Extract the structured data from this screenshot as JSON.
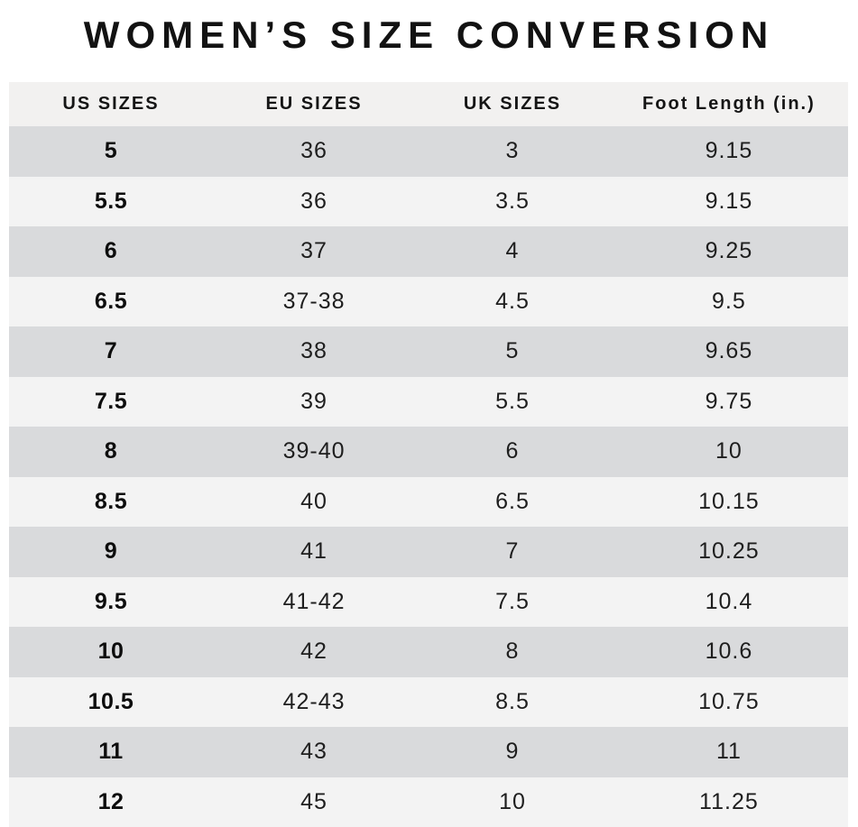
{
  "chart_data": {
    "type": "table",
    "title": "WOMEN’S SIZE CONVERSION",
    "columns": [
      "US SIZES",
      "EU SIZES",
      "UK SIZES",
      "Foot Length (in.)"
    ],
    "rows": [
      [
        "5",
        "36",
        "3",
        "9.15"
      ],
      [
        "5.5",
        "36",
        "3.5",
        "9.15"
      ],
      [
        "6",
        "37",
        "4",
        "9.25"
      ],
      [
        "6.5",
        "37-38",
        "4.5",
        "9.5"
      ],
      [
        "7",
        "38",
        "5",
        "9.65"
      ],
      [
        "7.5",
        "39",
        "5.5",
        "9.75"
      ],
      [
        "8",
        "39-40",
        "6",
        "10"
      ],
      [
        "8.5",
        "40",
        "6.5",
        "10.15"
      ],
      [
        "9",
        "41",
        "7",
        "10.25"
      ],
      [
        "9.5",
        "41-42",
        "7.5",
        "10.4"
      ],
      [
        "10",
        "42",
        "8",
        "10.6"
      ],
      [
        "10.5",
        "42-43",
        "8.5",
        "10.75"
      ],
      [
        "11",
        "43",
        "9",
        "11"
      ],
      [
        "12",
        "45",
        "10",
        "11.25"
      ]
    ],
    "layout": {
      "striped": true,
      "header_position": "top"
    }
  },
  "colors": {
    "background": "#ffffff",
    "header_bg": "#f2f1f0",
    "row_dark": "#d9dadc",
    "row_light": "#f3f3f3",
    "text": "#1e1e1e",
    "title_text": "#121212"
  }
}
